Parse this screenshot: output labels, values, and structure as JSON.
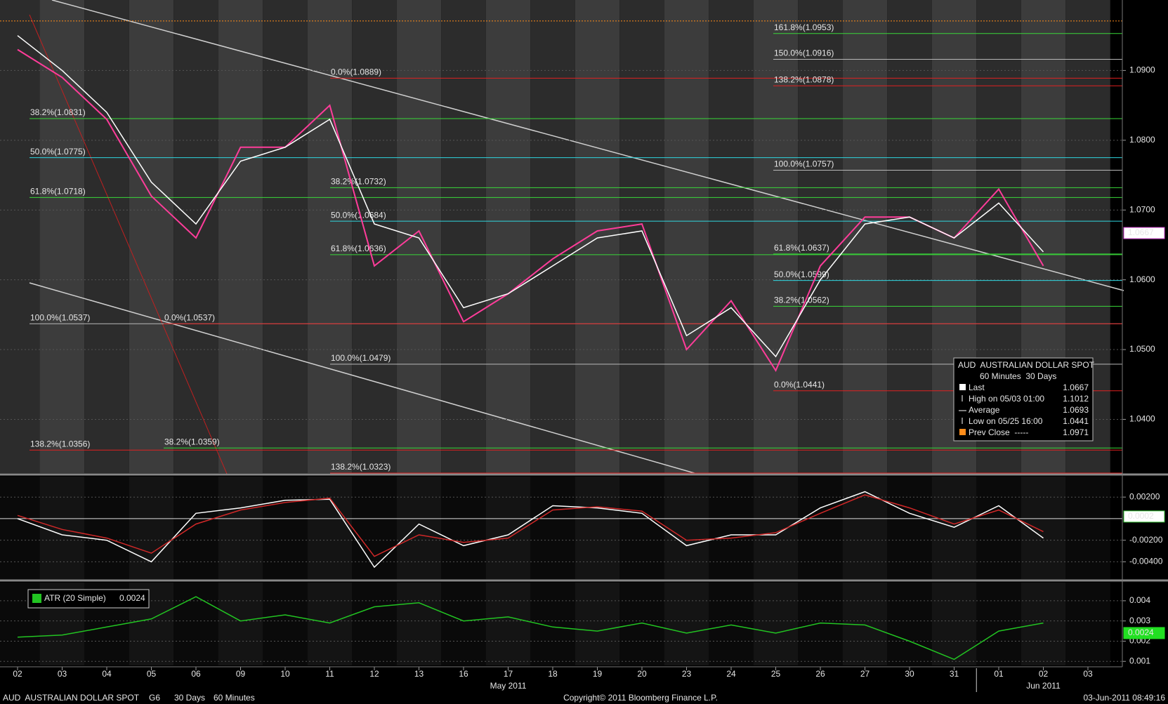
{
  "chart_data": [
    {
      "type": "line",
      "categories": [
        "02",
        "03",
        "04",
        "05",
        "06",
        "09",
        "10",
        "11",
        "12",
        "13",
        "16",
        "17",
        "18",
        "19",
        "20",
        "23",
        "24",
        "25",
        "26",
        "27",
        "30",
        "31",
        "01",
        "02",
        "03"
      ],
      "months": [
        "May 2011",
        "Jun 2011"
      ],
      "series": [
        {
          "color": "#ff3c9a",
          "values": [
            1.093,
            1.089,
            1.083,
            1.072,
            1.066,
            1.079,
            1.079,
            1.085,
            1.062,
            1.067,
            1.054,
            1.058,
            1.063,
            1.067,
            1.068,
            1.05,
            1.057,
            1.047,
            1.062,
            1.069,
            1.069,
            1.066,
            1.073,
            1.062,
            null
          ]
        },
        {
          "color": "#ffffff",
          "values": [
            1.095,
            1.09,
            1.084,
            1.074,
            1.068,
            1.077,
            1.079,
            1.083,
            1.068,
            1.066,
            1.056,
            1.058,
            1.062,
            1.066,
            1.067,
            1.052,
            1.056,
            1.049,
            1.06,
            1.068,
            1.069,
            1.066,
            1.071,
            1.064,
            null
          ]
        }
      ],
      "ylim": [
        1.0323,
        1.1001
      ],
      "yticks": [
        {
          "value": 1.04,
          "label": "1.0400"
        },
        {
          "value": 1.05,
          "label": "1.0500"
        },
        {
          "value": 1.06,
          "label": "1.0600"
        },
        {
          "value": 1.07,
          "label": "1.0700"
        },
        {
          "value": 1.08,
          "label": "1.0800"
        },
        {
          "value": 1.09,
          "label": "1.0900"
        }
      ],
      "grid": true,
      "last": 1.0667,
      "prev_close_line": {
        "value": 1.0971,
        "color": "#ff8c1a"
      },
      "fib_sets": [
        {
          "levels": [
            {
              "label": "38.2%(1.0831)",
              "value": 1.0831,
              "color": "#39d739"
            },
            {
              "label": "50.0%(1.0775)",
              "value": 1.0775,
              "color": "#2fd6e0"
            },
            {
              "label": "61.8%(1.0718)",
              "value": 1.0718,
              "color": "#39d739"
            },
            {
              "label": "100.0%(1.0537)",
              "value": 1.0537,
              "color": "#b8b8b8"
            },
            {
              "label": "138.2%(1.0356)",
              "value": 1.0356,
              "color": "#e02020"
            }
          ]
        },
        {
          "levels": [
            {
              "label": "0.0%(1.0537)",
              "value": 1.0537,
              "color": "#e02020"
            },
            {
              "label": "38.2%(1.0359)",
              "value": 1.0359,
              "color": "#39d739"
            }
          ]
        },
        {
          "levels": [
            {
              "label": "0.0%(1.0889)",
              "value": 1.0889,
              "color": "#e02020"
            },
            {
              "label": "38.2%(1.0732)",
              "value": 1.0732,
              "color": "#39d739"
            },
            {
              "label": "50.0%(1.0684)",
              "value": 1.0684,
              "color": "#2fd6e0"
            },
            {
              "label": "61.8%(1.0636)",
              "value": 1.0636,
              "color": "#39d739"
            },
            {
              "label": "100.0%(1.0479)",
              "value": 1.0479,
              "color": "#b8b8b8"
            },
            {
              "label": "138.2%(1.0323)",
              "value": 1.0323,
              "color": "#e02020"
            }
          ]
        },
        {
          "levels": [
            {
              "label": "161.8%(1.0953)",
              "value": 1.0953,
              "color": "#39d739"
            },
            {
              "label": "150.0%(1.0916)",
              "value": 1.0916,
              "color": "#b8b8b8"
            },
            {
              "label": "138.2%(1.0878)",
              "value": 1.0878,
              "color": "#e02020"
            },
            {
              "label": "100.0%(1.0757)",
              "value": 1.0757,
              "color": "#b8b8b8"
            },
            {
              "label": "61.8%(1.0637)",
              "value": 1.0637,
              "color": "#39d739"
            },
            {
              "label": "50.0%(1.0599)",
              "value": 1.0599,
              "color": "#2fd6e0"
            },
            {
              "label": "38.2%(1.0562)",
              "value": 1.0562,
              "color": "#39d739"
            },
            {
              "label": "0.0%(1.0441)",
              "value": 1.0441,
              "color": "#e02020"
            }
          ]
        }
      ]
    },
    {
      "type": "line",
      "series": [
        {
          "color": "#ffffff",
          "values": [
            0.0,
            -0.0015,
            -0.002,
            -0.004,
            0.0005,
            0.001,
            0.0017,
            0.0018,
            -0.0045,
            -0.0005,
            -0.0025,
            -0.0015,
            0.0012,
            0.001,
            0.0005,
            -0.0025,
            -0.0015,
            -0.0015,
            0.001,
            0.0025,
            0.0005,
            -0.0008,
            0.0012,
            -0.0018,
            null
          ]
        },
        {
          "color": "#d02828",
          "values": [
            0.0003,
            -0.001,
            -0.0018,
            -0.0032,
            -0.0005,
            0.0008,
            0.0015,
            0.0019,
            -0.0035,
            -0.0015,
            -0.0022,
            -0.0018,
            0.0008,
            0.0011,
            0.0007,
            -0.002,
            -0.0018,
            -0.0013,
            0.0005,
            0.0022,
            0.001,
            -0.0005,
            0.0008,
            -0.0012,
            null
          ]
        }
      ],
      "ylim": [
        -0.0056,
        0.0039
      ],
      "yticks": [
        {
          "value": -0.004,
          "label": "-0.00400"
        },
        {
          "value": -0.002,
          "label": "-0.00200"
        },
        {
          "value": 0.002,
          "label": "0.00200"
        }
      ],
      "grid": true,
      "last": 0.0002
    },
    {
      "type": "line",
      "legend_label": "ATR (20 Simple)",
      "series": [
        {
          "color": "#22c422",
          "values": [
            0.0022,
            0.0023,
            0.0027,
            0.0031,
            0.0042,
            0.003,
            0.0033,
            0.0029,
            0.0037,
            0.0039,
            0.003,
            0.0032,
            0.0027,
            0.0025,
            0.0029,
            0.0024,
            0.0028,
            0.0024,
            0.0029,
            0.0028,
            0.002,
            0.0011,
            0.0025,
            0.0029,
            null
          ]
        }
      ],
      "ylim": [
        0.0008,
        0.0049
      ],
      "yticks": [
        0.001,
        0.002,
        0.003,
        0.004
      ],
      "grid": true,
      "last": 0.0024
    }
  ],
  "info_box": {
    "title": "AUD  AUSTRALIAN DOLLAR SPOT",
    "subtitle": "60 Minutes  30 Days",
    "rows": [
      [
        "Last",
        1.0667
      ],
      [
        "High on 05/03 01:00",
        1.1012
      ],
      [
        "Average",
        1.0693
      ],
      [
        "Low on 05/25 16:00",
        1.0441
      ],
      [
        "Prev Close  -----",
        1.0971
      ]
    ]
  },
  "footer": {
    "security": "AUD  AUSTRALIAN DOLLAR SPOT",
    "group": "G6",
    "period": "30 Days",
    "interval": "60 Minutes",
    "copyright": "Copyright© 2011 Bloomberg Finance L.P.",
    "timestamp": "03-Jun-2011 08:49:16"
  }
}
